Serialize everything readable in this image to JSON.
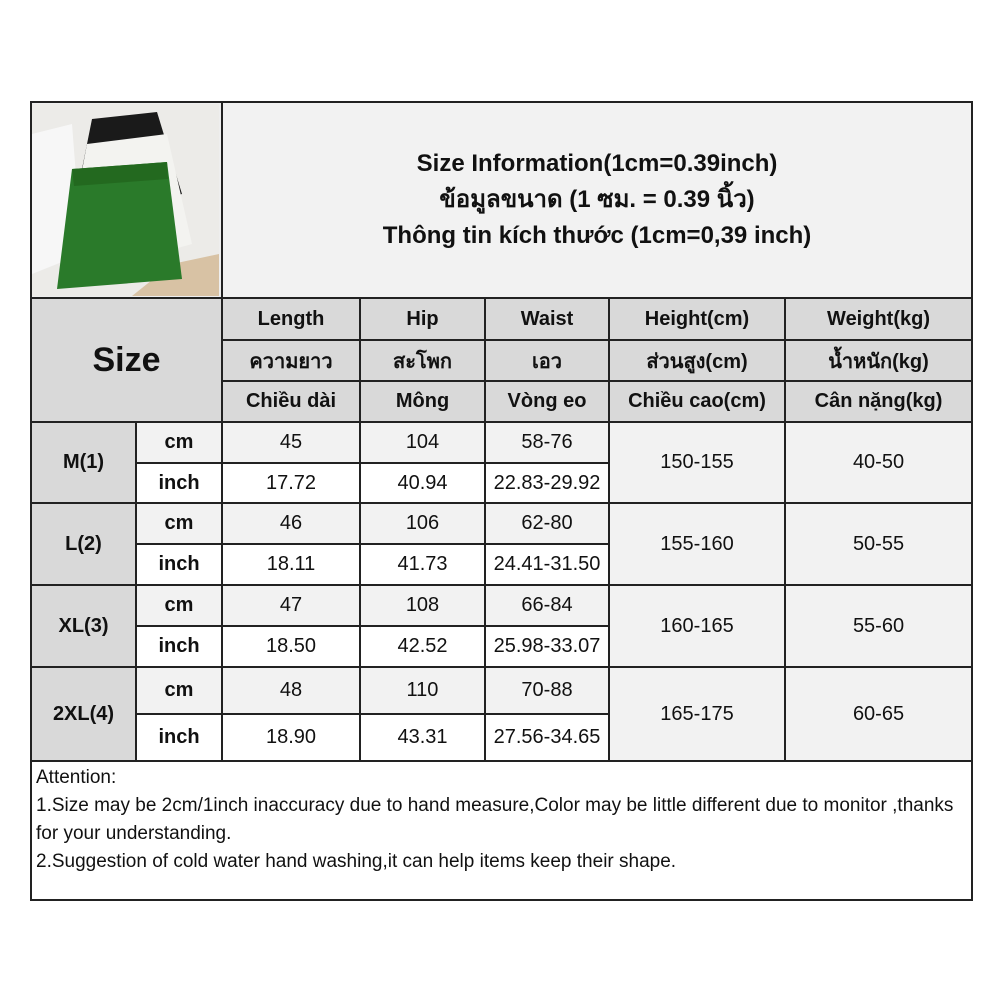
{
  "title_lines": [
    "Size Information(1cm=0.39inch)",
    "ข้อมูลขนาด (1 ซม. = 0.39 นิ้ว)",
    "Thông tin kích thước (1cm=0,39 inch)"
  ],
  "photo": {
    "icon": "product-photo-green-shorts",
    "colors": [
      "#2a7a2a",
      "#f3f3f0",
      "#1a1a1a"
    ]
  },
  "size_label": "Size",
  "headers": [
    [
      "Length",
      "ความยาว",
      "Chiều dài"
    ],
    [
      "Hip",
      "สะโพก",
      "Mông"
    ],
    [
      "Waist",
      "เอว",
      "Vòng eo"
    ],
    [
      "Height(cm)",
      "ส่วนสูง(cm)",
      "Chiều cao(cm)"
    ],
    [
      "Weight(kg)",
      "น้ำหนัก(kg)",
      "Cân nặng(kg)"
    ]
  ],
  "units": {
    "cm": "cm",
    "inch": "inch"
  },
  "rows": [
    {
      "size": "M(1)",
      "cm": [
        "45",
        "104",
        "58-76"
      ],
      "inch": [
        "17.72",
        "40.94",
        "22.83-29.92"
      ],
      "height": "150-155",
      "weight": "40-50"
    },
    {
      "size": "L(2)",
      "cm": [
        "46",
        "106",
        "62-80"
      ],
      "inch": [
        "18.11",
        "41.73",
        "24.41-31.50"
      ],
      "height": "155-160",
      "weight": "50-55"
    },
    {
      "size": "XL(3)",
      "cm": [
        "47",
        "108",
        "66-84"
      ],
      "inch": [
        "18.50",
        "42.52",
        "25.98-33.07"
      ],
      "height": "160-165",
      "weight": "55-60"
    },
    {
      "size": "2XL(4)",
      "cm": [
        "48",
        "110",
        "70-88"
      ],
      "inch": [
        "18.90",
        "43.31",
        "27.56-34.65"
      ],
      "height": "165-175",
      "weight": "60-65"
    }
  ],
  "notes": [
    "Attention:",
    "1.Size may be 2cm/1inch inaccuracy due to hand measure,Color may be little different due to monitor ,thanks for your understanding.",
    "2.Suggestion of cold water hand washing,it can help items keep their shape."
  ]
}
